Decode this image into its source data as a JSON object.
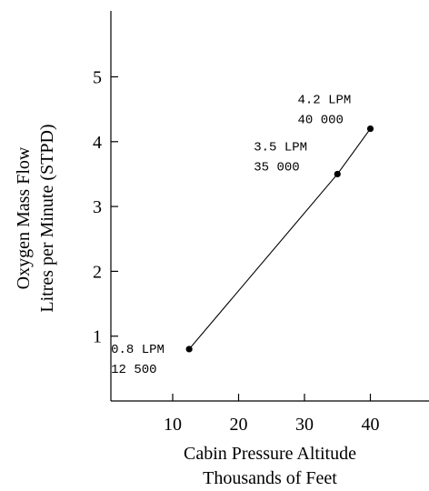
{
  "chart_data": {
    "type": "line",
    "title": "",
    "xlabel_lines": [
      "Cabin Pressure Altitude",
      "Thousands of Feet"
    ],
    "ylabel_lines": [
      "Oxygen Mass Flow",
      "Litres per Minute (STPD)"
    ],
    "xlim": [
      0,
      48
    ],
    "ylim": [
      0,
      6
    ],
    "xticks": [
      10,
      20,
      30,
      40
    ],
    "yticks": [
      1,
      2,
      3,
      4,
      5
    ],
    "grid": false,
    "series": [
      {
        "x": [
          12.5,
          35,
          40
        ],
        "y": [
          0.8,
          3.5,
          4.2
        ]
      }
    ],
    "annotations": [
      {
        "x": 12.5,
        "y": 0.8,
        "lines": [
          "0.8 LPM",
          "12 500"
        ]
      },
      {
        "x": 35,
        "y": 3.5,
        "lines": [
          "3.5 LPM",
          "35 000"
        ]
      },
      {
        "x": 40,
        "y": 4.2,
        "lines": [
          "4.2 LPM",
          "40 000"
        ]
      }
    ]
  }
}
